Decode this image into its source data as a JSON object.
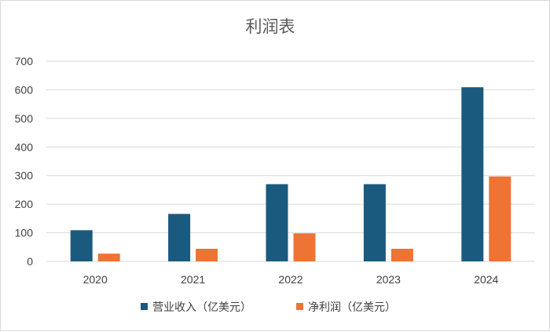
{
  "chart_data": {
    "type": "bar",
    "title": "利润表",
    "categories": [
      "2020",
      "2021",
      "2022",
      "2023",
      "2024"
    ],
    "series": [
      {
        "name": "营业收入（亿美元）",
        "values": [
          109,
          166,
          270,
          270,
          609
        ],
        "color": "#1b5a7f"
      },
      {
        "name": "净利润（亿美元）",
        "values": [
          27,
          44,
          98,
          44,
          297
        ],
        "color": "#ed7434"
      }
    ],
    "y_ticks": [
      "0",
      "100",
      "200",
      "300",
      "400",
      "500",
      "600",
      "700"
    ],
    "ylim": [
      0,
      700
    ],
    "grid": true,
    "legend_position": "bottom"
  }
}
